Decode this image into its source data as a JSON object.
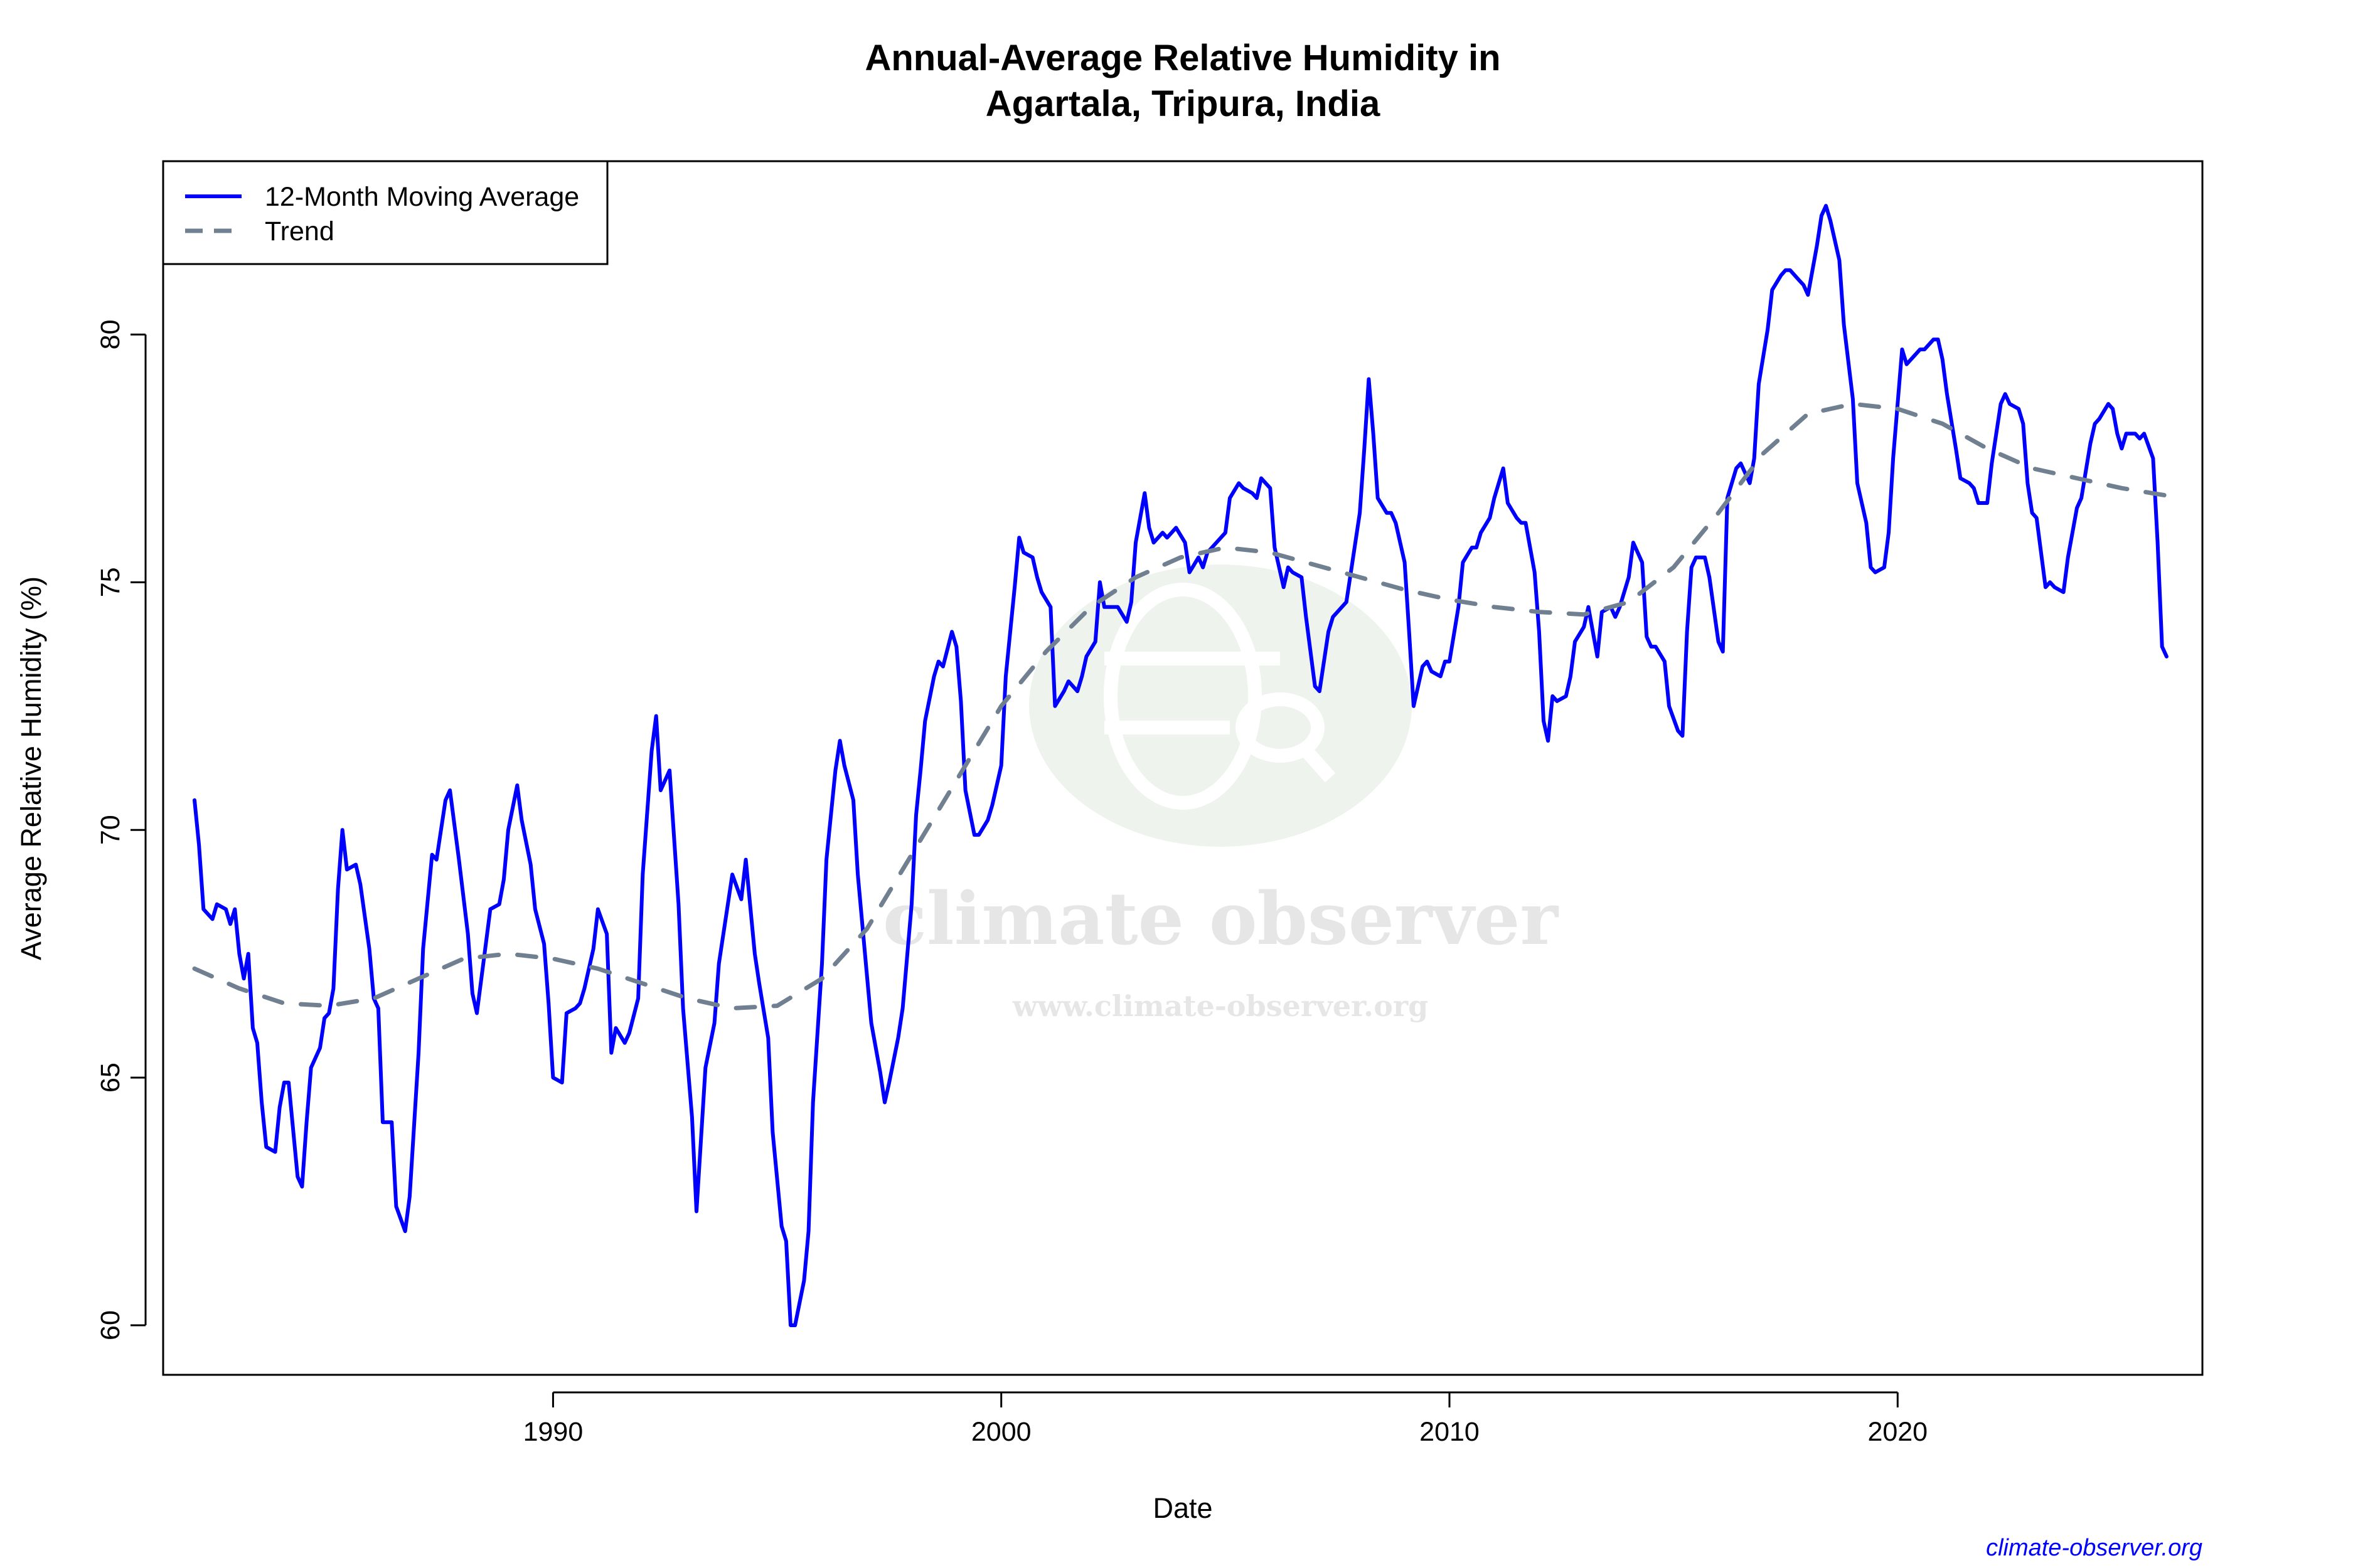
{
  "chart_data": {
    "type": "line",
    "title": "Annual-Average Relative Humidity in\nAgartala, Tripura, India",
    "xlabel": "Date",
    "ylabel": "Average Relative Humidity (%)",
    "xlim": [
      1981.3,
      2026.8
    ],
    "ylim": [
      59,
      83.5
    ],
    "x_ticks": [
      1990,
      2000,
      2010,
      2020
    ],
    "y_ticks": [
      60,
      65,
      70,
      75,
      80
    ],
    "grid": false,
    "legend_position": "top-left",
    "series": [
      {
        "name": "12-Month Moving Average",
        "color": "#0000ff",
        "style": "solid",
        "x": [
          1982.0,
          1982.1,
          1982.2,
          1982.4,
          1982.5,
          1982.7,
          1982.8,
          1982.9,
          1983.0,
          1983.1,
          1983.2,
          1983.3,
          1983.4,
          1983.5,
          1983.6,
          1983.8,
          1983.9,
          1984.0,
          1984.1,
          1984.3,
          1984.4,
          1984.5,
          1984.6,
          1984.8,
          1984.9,
          1985.0,
          1985.1,
          1985.2,
          1985.3,
          1985.4,
          1985.6,
          1985.7,
          1985.9,
          1986.0,
          1986.1,
          1986.2,
          1986.4,
          1986.5,
          1986.7,
          1986.8,
          1987.0,
          1987.1,
          1987.3,
          1987.4,
          1987.6,
          1987.7,
          1987.9,
          1988.1,
          1988.2,
          1988.3,
          1988.5,
          1988.6,
          1988.8,
          1988.9,
          1989.0,
          1989.2,
          1989.3,
          1989.5,
          1989.6,
          1989.8,
          1989.9,
          1990.0,
          1990.2,
          1990.3,
          1990.5,
          1990.6,
          1990.7,
          1990.9,
          1991.0,
          1991.2,
          1991.3,
          1991.4,
          1991.6,
          1991.7,
          1991.9,
          1992.0,
          1992.2,
          1992.3,
          1992.4,
          1992.6,
          1992.8,
          1992.9,
          1993.1,
          1993.2,
          1993.4,
          1993.6,
          1993.7,
          1993.9,
          1994.0,
          1994.2,
          1994.3,
          1994.5,
          1994.6,
          1994.8,
          1994.9,
          1995.1,
          1995.2,
          1995.3,
          1995.4,
          1995.6,
          1995.7,
          1995.8,
          1996.0,
          1996.1,
          1996.3,
          1996.4,
          1996.5,
          1996.7,
          1996.8,
          1997.0,
          1997.1,
          1997.3,
          1997.4,
          1997.5,
          1997.7,
          1997.8,
          1998.0,
          1998.1,
          1998.2,
          1998.3,
          1998.5,
          1998.6,
          1998.7,
          1998.9,
          1999.0,
          1999.1,
          1999.2,
          1999.4,
          1999.5,
          1999.7,
          1999.8,
          2000.0,
          2000.1,
          2000.3,
          2000.4,
          2000.5,
          2000.7,
          2000.8,
          2000.9,
          2001.1,
          2001.2,
          2001.4,
          2001.5,
          2001.7,
          2001.8,
          2001.9,
          2002.1,
          2002.2,
          2002.3,
          2002.5,
          2002.6,
          2002.8,
          2002.9,
          2003.0,
          2003.2,
          2003.3,
          2003.4,
          2003.6,
          2003.7,
          2003.9,
          2004.1,
          2004.2,
          2004.4,
          2004.5,
          2004.6,
          2004.8,
          2005.0,
          2005.1,
          2005.3,
          2005.4,
          2005.6,
          2005.7,
          2005.8,
          2006.0,
          2006.1,
          2006.3,
          2006.4,
          2006.5,
          2006.7,
          2006.8,
          2007.0,
          2007.1,
          2007.3,
          2007.4,
          2007.5,
          2007.7,
          2007.8,
          2008.0,
          2008.1,
          2008.2,
          2008.3,
          2008.4,
          2008.6,
          2008.7,
          2008.8,
          2009.0,
          2009.1,
          2009.2,
          2009.4,
          2009.5,
          2009.6,
          2009.8,
          2009.9,
          2010.0,
          2010.2,
          2010.3,
          2010.5,
          2010.6,
          2010.7,
          2010.9,
          2011.0,
          2011.2,
          2011.3,
          2011.5,
          2011.6,
          2011.7,
          2011.9,
          2012.0,
          2012.1,
          2012.2,
          2012.3,
          2012.4,
          2012.6,
          2012.7,
          2012.8,
          2013.0,
          2013.1,
          2013.3,
          2013.4,
          2013.6,
          2013.7,
          2013.8,
          2014.0,
          2014.1,
          2014.3,
          2014.4,
          2014.5,
          2014.6,
          2014.8,
          2014.9,
          2015.1,
          2015.2,
          2015.3,
          2015.4,
          2015.5,
          2015.7,
          2015.8,
          2016.0,
          2016.1,
          2016.2,
          2016.4,
          2016.5,
          2016.7,
          2016.8,
          2016.9,
          2017.1,
          2017.2,
          2017.4,
          2017.5,
          2017.6,
          2017.8,
          2017.9,
          2018.0,
          2018.2,
          2018.3,
          2018.4,
          2018.5,
          2018.7,
          2018.8,
          2019.0,
          2019.1,
          2019.3,
          2019.4,
          2019.5,
          2019.7,
          2019.8,
          2019.9,
          2020.1,
          2020.2,
          2020.3,
          2020.5,
          2020.6,
          2020.8,
          2020.9,
          2021.0,
          2021.1,
          2021.3,
          2021.4,
          2021.6,
          2021.7,
          2021.8,
          2022.0,
          2022.1,
          2022.3,
          2022.4,
          2022.5,
          2022.7,
          2022.8,
          2022.9,
          2023.0,
          2023.1,
          2023.3,
          2023.4,
          2023.5,
          2023.7,
          2023.8,
          2024.0,
          2024.1,
          2024.3,
          2024.4,
          2024.5,
          2024.7,
          2024.8,
          2024.9,
          2025.0,
          2025.1,
          2025.3,
          2025.4,
          2025.5,
          2025.7,
          2025.8,
          2025.9,
          2026.0
        ],
        "y": [
          70.6,
          69.7,
          68.4,
          68.2,
          68.5,
          68.4,
          68.1,
          68.4,
          67.5,
          67.0,
          67.5,
          66.0,
          65.7,
          64.5,
          63.6,
          63.5,
          64.4,
          64.9,
          64.9,
          63.0,
          62.8,
          64.1,
          65.2,
          65.6,
          66.2,
          66.3,
          66.8,
          68.8,
          70.0,
          69.2,
          69.3,
          68.9,
          67.6,
          66.6,
          66.4,
          64.1,
          64.1,
          62.4,
          61.9,
          62.6,
          65.5,
          67.6,
          69.5,
          69.4,
          70.6,
          70.8,
          69.4,
          67.9,
          66.7,
          66.3,
          67.7,
          68.4,
          68.5,
          69.0,
          70.0,
          70.9,
          70.2,
          69.3,
          68.4,
          67.7,
          66.5,
          65.0,
          64.9,
          66.3,
          66.4,
          66.5,
          66.8,
          67.6,
          68.4,
          67.9,
          65.5,
          66.0,
          65.7,
          65.9,
          66.6,
          69.1,
          71.6,
          72.3,
          70.8,
          71.2,
          68.5,
          66.4,
          64.2,
          62.3,
          65.2,
          66.1,
          67.3,
          68.5,
          69.1,
          68.6,
          69.4,
          67.5,
          66.9,
          65.8,
          63.9,
          62.0,
          61.7,
          60.0,
          60.0,
          60.9,
          61.9,
          64.5,
          67.3,
          69.4,
          71.2,
          71.8,
          71.3,
          70.6,
          69.1,
          67.1,
          66.1,
          65.1,
          64.5,
          64.9,
          65.8,
          66.4,
          68.5,
          70.3,
          71.2,
          72.2,
          73.1,
          73.4,
          73.3,
          74.0,
          73.7,
          72.6,
          70.8,
          69.9,
          69.9,
          70.2,
          70.5,
          71.3,
          73.1,
          74.9,
          75.9,
          75.6,
          75.5,
          75.1,
          74.8,
          74.5,
          72.5,
          72.8,
          73.0,
          72.8,
          73.1,
          73.5,
          73.8,
          75.0,
          74.5,
          74.5,
          74.5,
          74.2,
          74.6,
          75.8,
          76.8,
          76.1,
          75.8,
          76.0,
          75.9,
          76.1,
          75.8,
          75.2,
          75.5,
          75.3,
          75.6,
          75.8,
          76.0,
          76.7,
          77.0,
          76.9,
          76.8,
          76.7,
          77.1,
          76.9,
          75.7,
          74.9,
          75.3,
          75.2,
          75.1,
          74.3,
          72.9,
          72.8,
          74.0,
          74.3,
          74.4,
          74.6,
          75.2,
          76.4,
          77.7,
          79.1,
          78.0,
          76.7,
          76.4,
          76.4,
          76.2,
          75.4,
          74.0,
          72.5,
          73.3,
          73.4,
          73.2,
          73.1,
          73.4,
          73.4,
          74.5,
          75.4,
          75.7,
          75.7,
          76.0,
          76.3,
          76.7,
          77.3,
          76.6,
          76.3,
          76.2,
          76.2,
          75.2,
          74.0,
          72.2,
          71.8,
          72.7,
          72.6,
          72.7,
          73.1,
          73.8,
          74.1,
          74.5,
          73.5,
          74.4,
          74.5,
          74.3,
          74.5,
          75.1,
          75.8,
          75.4,
          73.9,
          73.7,
          73.7,
          73.4,
          72.5,
          72.0,
          71.9,
          74.0,
          75.3,
          75.5,
          75.5,
          75.1,
          73.8,
          73.6,
          76.7,
          77.3,
          77.4,
          77.0,
          77.5,
          79.0,
          80.1,
          80.9,
          81.2,
          81.3,
          81.3,
          81.1,
          81.0,
          80.8,
          81.8,
          82.4,
          82.6,
          82.3,
          81.5,
          80.2,
          78.7,
          77.0,
          76.2,
          75.3,
          75.2,
          75.3,
          76.0,
          77.5,
          79.7,
          79.4,
          79.5,
          79.7,
          79.7,
          79.9,
          79.9,
          79.5,
          78.8,
          77.7,
          77.1,
          77.0,
          76.9,
          76.6,
          76.6,
          77.4,
          78.6,
          78.8,
          78.6,
          78.5,
          78.2,
          77.0,
          76.4,
          76.3,
          74.9,
          75.0,
          74.9,
          74.8,
          75.5,
          76.5,
          76.7,
          77.8,
          78.2,
          78.3,
          78.6,
          78.5,
          78.0,
          77.7,
          78.0,
          78.0,
          77.9,
          78.0,
          77.5,
          75.8,
          73.7,
          73.5
        ]
      },
      {
        "name": "Trend",
        "color": "#708090",
        "style": "dashed",
        "x": [
          1982,
          1983,
          1984,
          1985,
          1986,
          1987,
          1988,
          1989,
          1990,
          1991,
          1992,
          1993,
          1994,
          1995,
          1996,
          1997,
          1998,
          1999,
          2000,
          2001,
          2002,
          2003,
          2004,
          2005,
          2006,
          2007,
          2008,
          2009,
          2010,
          2011,
          2012,
          2013,
          2014,
          2015,
          2016,
          2017,
          2018,
          2019,
          2020,
          2021,
          2022,
          2023,
          2024,
          2025,
          2026
        ],
        "y": [
          67.2,
          66.8,
          66.5,
          66.45,
          66.6,
          67.0,
          67.4,
          67.5,
          67.4,
          67.2,
          66.9,
          66.6,
          66.4,
          66.45,
          67.0,
          68.0,
          69.5,
          71.0,
          72.5,
          73.6,
          74.5,
          75.1,
          75.5,
          75.7,
          75.6,
          75.35,
          75.1,
          74.85,
          74.65,
          74.5,
          74.4,
          74.35,
          74.6,
          75.3,
          76.4,
          77.6,
          78.4,
          78.6,
          78.5,
          78.2,
          77.7,
          77.3,
          77.1,
          76.9,
          76.75
        ]
      }
    ]
  },
  "watermark": {
    "brand": "climate observer",
    "url": "www.climate-observer.org"
  },
  "credit": "climate-observer.org"
}
